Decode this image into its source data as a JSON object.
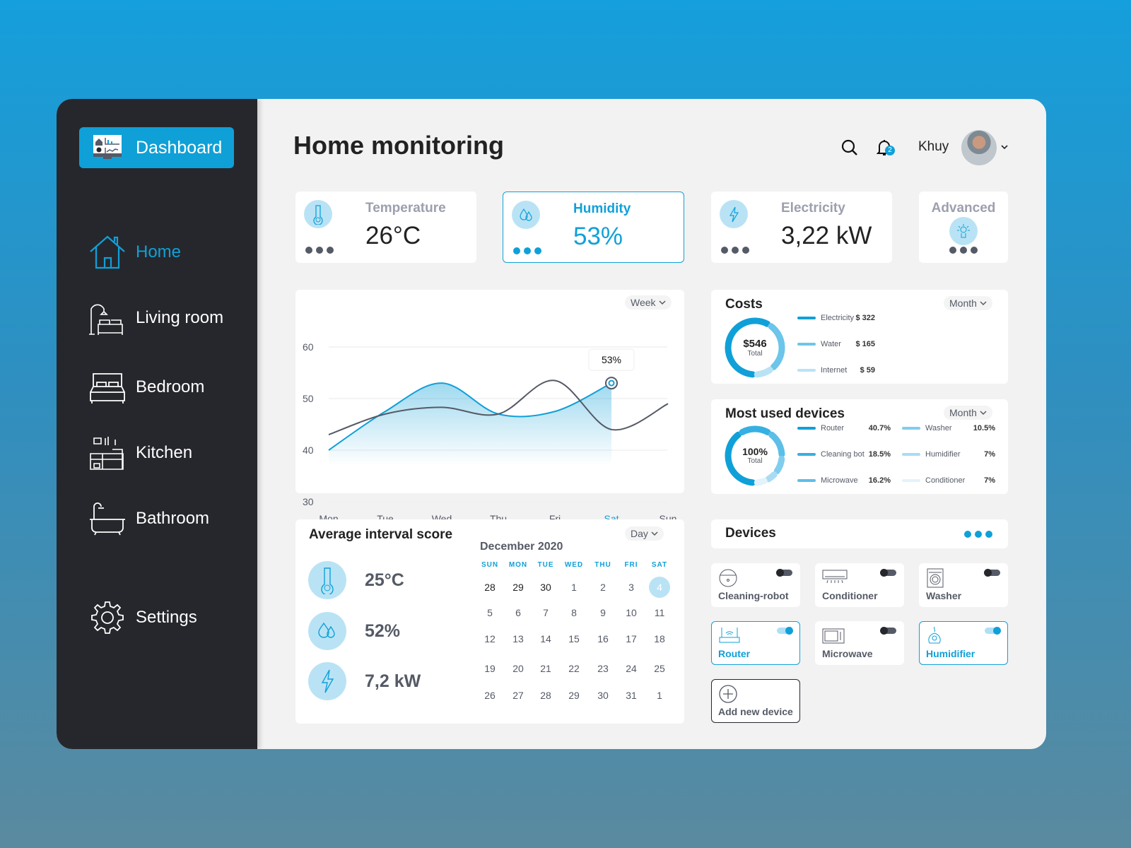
{
  "sidebar": {
    "dashboard": "Dashboard",
    "items": [
      {
        "label": "Home",
        "icon": "home-icon",
        "active": true
      },
      {
        "label": "Living room",
        "icon": "living-room-icon"
      },
      {
        "label": "Bedroom",
        "icon": "bed-icon"
      },
      {
        "label": "Kitchen",
        "icon": "kitchen-icon"
      },
      {
        "label": "Bathroom",
        "icon": "bathtub-icon"
      }
    ],
    "settings": "Settings"
  },
  "header": {
    "title": "Home monitoring",
    "notifications": "2",
    "user": "Khuy"
  },
  "stats": [
    {
      "label": "Temperature",
      "value": "26°C"
    },
    {
      "label": "Humidity",
      "value": "53%",
      "active": true
    },
    {
      "label": "Electricity",
      "value": "3,22 kW"
    },
    {
      "label": "Advanced"
    }
  ],
  "chart_data": {
    "type": "line",
    "period": "Week",
    "categories": [
      "Mon",
      "Tue",
      "Wed",
      "Thu",
      "Fri",
      "Sat",
      "Sun"
    ],
    "yticks": [
      "60",
      "50",
      "40",
      "30"
    ],
    "ylim": [
      30,
      60
    ],
    "highlight": "Sat",
    "tooltip": "53%",
    "series": [
      {
        "color": "#10a0d8",
        "values": [
          40,
          47.5,
          53,
          47,
          47.5,
          53,
          null
        ],
        "filled": true
      },
      {
        "color": "#555a66",
        "values": [
          43,
          47,
          48.3,
          47,
          53.5,
          44,
          49
        ]
      }
    ]
  },
  "costs": {
    "title": "Costs",
    "period": "Month",
    "total": "$546",
    "total_label": "Total",
    "items": [
      {
        "label": "Electricity",
        "value": "$ 322",
        "amount": 322,
        "color": "#10a0d8"
      },
      {
        "label": "Water",
        "value": "$ 165",
        "amount": 165,
        "color": "#6cc5ea"
      },
      {
        "label": "Internet",
        "value": "$ 59",
        "amount": 59,
        "color": "#b9e3f5"
      }
    ]
  },
  "most_used": {
    "title": "Most used devices",
    "period": "Month",
    "total": "100%",
    "total_label": "Total",
    "items": [
      {
        "label": "Router",
        "value": "40.7%",
        "pct": 40.7,
        "color": "#10a0d8"
      },
      {
        "label": "Cleaning bot",
        "value": "18.5%",
        "pct": 18.5,
        "color": "#36b0e2"
      },
      {
        "label": "Microwave",
        "value": "16.2%",
        "pct": 16.2,
        "color": "#5cbfe8"
      },
      {
        "label": "Washer",
        "value": "10.5%",
        "pct": 10.5,
        "color": "#80cdee"
      },
      {
        "label": "Humidifier",
        "value": "7%",
        "pct": 7,
        "color": "#a9dcf3"
      },
      {
        "label": "Conditioner",
        "value": "7%",
        "pct": 7,
        "color": "#e3f3fb"
      }
    ]
  },
  "interval": {
    "title": "Average interval score",
    "period": "Day",
    "temperature": "25°C",
    "humidity": "52%",
    "electricity": "7,2 kW"
  },
  "calendar": {
    "month": "December 2020",
    "weekdays": [
      "SUN",
      "MON",
      "TUE",
      "WED",
      "THU",
      "FRI",
      "SAT"
    ],
    "selected": "4",
    "weeks": [
      [
        "28",
        "29",
        "30",
        "1",
        "2",
        "3",
        "4"
      ],
      [
        "5",
        "6",
        "7",
        "8",
        "9",
        "10",
        "11"
      ],
      [
        "12",
        "13",
        "14",
        "15",
        "16",
        "17",
        "18"
      ],
      [
        "19",
        "20",
        "21",
        "22",
        "23",
        "24",
        "25"
      ],
      [
        "26",
        "27",
        "28",
        "29",
        "30",
        "31",
        "1"
      ]
    ]
  },
  "devices": {
    "title": "Devices",
    "items": [
      {
        "label": "Cleaning-robot",
        "on": false
      },
      {
        "label": "Conditioner",
        "on": false
      },
      {
        "label": "Washer",
        "on": false
      },
      {
        "label": "Router",
        "on": true
      },
      {
        "label": "Microwave",
        "on": false
      },
      {
        "label": "Humidifier",
        "on": true
      }
    ],
    "add": "Add new device"
  }
}
